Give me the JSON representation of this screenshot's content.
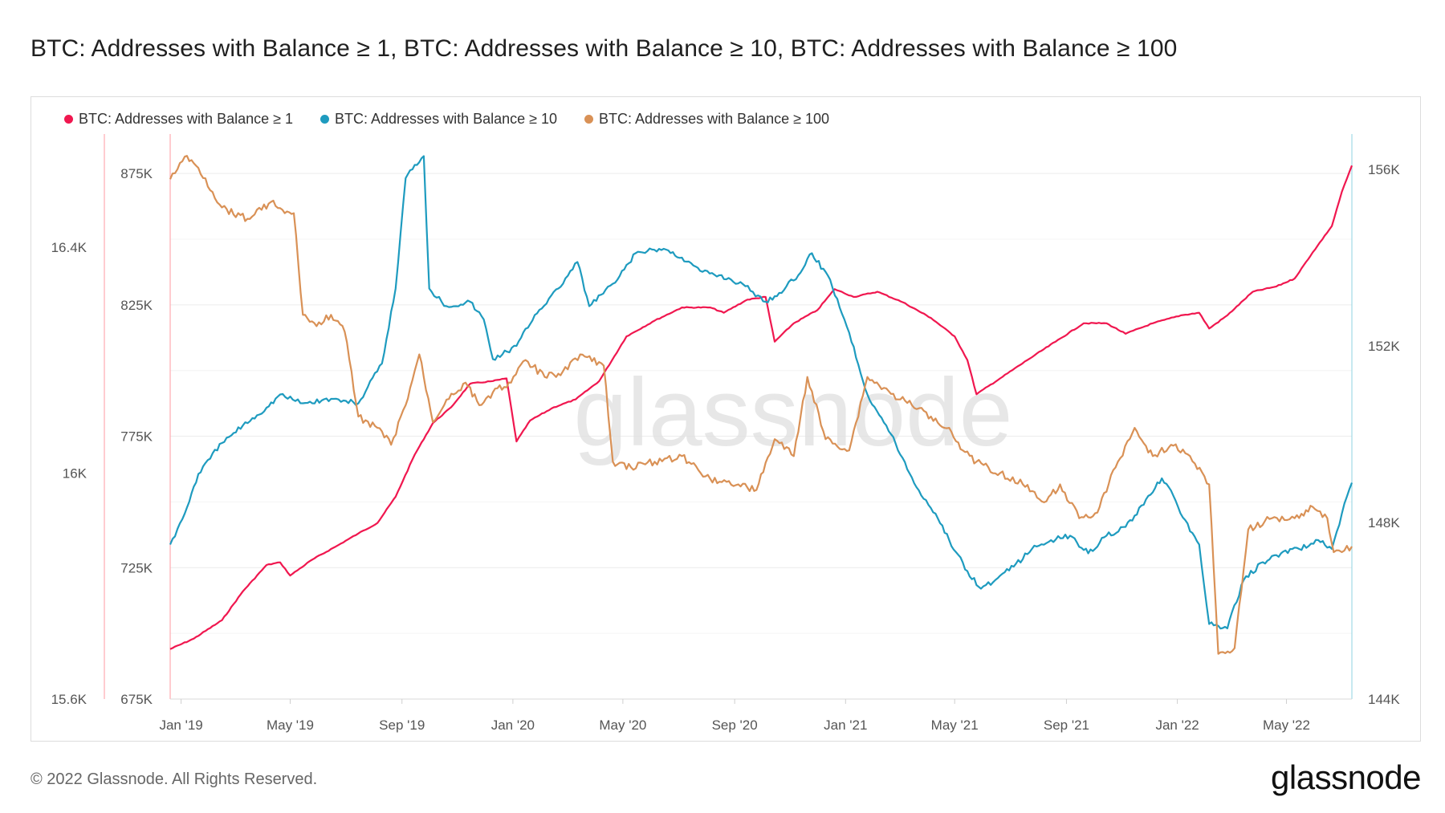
{
  "title": "BTC: Addresses with Balance ≥ 1, BTC: Addresses with Balance ≥ 10, BTC: Addresses with Balance ≥ 100",
  "footer": "© 2022 Glassnode. All Rights Reserved.",
  "brand": "glassnode",
  "watermark": "glassnode",
  "chart_data": {
    "type": "line",
    "x_ticks": [
      "Jan '19",
      "May '19",
      "Sep '19",
      "Jan '20",
      "May '20",
      "Sep '20",
      "Jan '21",
      "May '21",
      "Sep '21",
      "Jan '22",
      "May '22"
    ],
    "x_range": [
      "2018-12-20",
      "2022-07-12"
    ],
    "axes": {
      "left_outer": {
        "ticks": [
          "15.6K",
          "16K",
          "16.4K"
        ],
        "range": [
          15600,
          16600
        ],
        "color": "#ff9aa2"
      },
      "left_inner": {
        "ticks": [
          "675K",
          "725K",
          "775K",
          "825K",
          "875K"
        ],
        "range": [
          675000,
          890000
        ],
        "color": "#ff9aa2"
      },
      "right": {
        "ticks": [
          "144K",
          "148K",
          "152K",
          "156K"
        ],
        "range": [
          144000,
          156800
        ],
        "color": "#8fd3e0"
      }
    },
    "grid": true,
    "legend": "top-left",
    "series": [
      {
        "name": "BTC: Addresses with Balance ≥ 1",
        "color": "#f0174f",
        "axis": "left_inner",
        "points": [
          [
            "2018-12-20",
            694000
          ],
          [
            "2019-01-15",
            698000
          ],
          [
            "2019-02-15",
            705000
          ],
          [
            "2019-03-10",
            716000
          ],
          [
            "2019-04-05",
            726000
          ],
          [
            "2019-04-20",
            727000
          ],
          [
            "2019-05-01",
            722000
          ],
          [
            "2019-05-25",
            728000
          ],
          [
            "2019-06-20",
            733000
          ],
          [
            "2019-07-15",
            738000
          ],
          [
            "2019-08-05",
            742000
          ],
          [
            "2019-08-25",
            752000
          ],
          [
            "2019-09-15",
            768000
          ],
          [
            "2019-10-05",
            780000
          ],
          [
            "2019-10-25",
            786000
          ],
          [
            "2019-11-15",
            795000
          ],
          [
            "2019-12-10",
            796000
          ],
          [
            "2019-12-25",
            797000
          ],
          [
            "2020-01-05",
            773000
          ],
          [
            "2020-01-20",
            781000
          ],
          [
            "2020-02-15",
            786000
          ],
          [
            "2020-03-10",
            789000
          ],
          [
            "2020-04-05",
            796000
          ],
          [
            "2020-05-05",
            813000
          ],
          [
            "2020-06-05",
            819000
          ],
          [
            "2020-07-05",
            824000
          ],
          [
            "2020-08-05",
            824000
          ],
          [
            "2020-08-20",
            822000
          ],
          [
            "2020-09-15",
            827000
          ],
          [
            "2020-10-05",
            828000
          ],
          [
            "2020-10-15",
            811000
          ],
          [
            "2020-11-05",
            818000
          ],
          [
            "2020-12-01",
            823000
          ],
          [
            "2020-12-20",
            831000
          ],
          [
            "2021-01-10",
            828000
          ],
          [
            "2021-02-05",
            830000
          ],
          [
            "2021-03-05",
            826000
          ],
          [
            "2021-04-05",
            820000
          ],
          [
            "2021-05-01",
            813000
          ],
          [
            "2021-05-15",
            804000
          ],
          [
            "2021-05-25",
            791000
          ],
          [
            "2021-06-20",
            797000
          ],
          [
            "2021-07-20",
            804000
          ],
          [
            "2021-08-20",
            811000
          ],
          [
            "2021-09-20",
            818000
          ],
          [
            "2021-10-15",
            818000
          ],
          [
            "2021-11-05",
            814000
          ],
          [
            "2021-12-05",
            818000
          ],
          [
            "2022-01-05",
            821000
          ],
          [
            "2022-01-25",
            822000
          ],
          [
            "2022-02-05",
            816000
          ],
          [
            "2022-02-25",
            821000
          ],
          [
            "2022-03-25",
            830000
          ],
          [
            "2022-04-20",
            832000
          ],
          [
            "2022-05-10",
            835000
          ],
          [
            "2022-05-30",
            845000
          ],
          [
            "2022-06-20",
            855000
          ],
          [
            "2022-07-01",
            868000
          ],
          [
            "2022-07-12",
            878000
          ]
        ]
      },
      {
        "name": "BTC: Addresses with Balance ≥ 10",
        "color": "#1e9bbf",
        "axis": "right",
        "points": [
          [
            "2018-12-20",
            147500
          ],
          [
            "2019-01-05",
            148200
          ],
          [
            "2019-01-20",
            149100
          ],
          [
            "2019-02-15",
            149800
          ],
          [
            "2019-03-10",
            150200
          ],
          [
            "2019-04-05",
            150600
          ],
          [
            "2019-04-20",
            150900
          ],
          [
            "2019-05-15",
            150700
          ],
          [
            "2019-06-15",
            150800
          ],
          [
            "2019-07-15",
            150700
          ],
          [
            "2019-08-10",
            151600
          ],
          [
            "2019-08-25",
            153300
          ],
          [
            "2019-09-05",
            155800
          ],
          [
            "2019-09-15",
            156100
          ],
          [
            "2019-09-25",
            156300
          ],
          [
            "2019-10-01",
            153300
          ],
          [
            "2019-10-20",
            152900
          ],
          [
            "2019-11-15",
            153000
          ],
          [
            "2019-11-30",
            152600
          ],
          [
            "2019-12-10",
            151700
          ],
          [
            "2020-01-05",
            152000
          ],
          [
            "2020-01-25",
            152700
          ],
          [
            "2020-02-20",
            153300
          ],
          [
            "2020-03-12",
            153900
          ],
          [
            "2020-03-25",
            152900
          ],
          [
            "2020-04-25",
            153500
          ],
          [
            "2020-05-15",
            154100
          ],
          [
            "2020-06-15",
            154200
          ],
          [
            "2020-07-05",
            154000
          ],
          [
            "2020-07-25",
            153700
          ],
          [
            "2020-08-15",
            153600
          ],
          [
            "2020-09-10",
            153400
          ],
          [
            "2020-10-05",
            153000
          ],
          [
            "2020-10-20",
            153200
          ],
          [
            "2020-11-10",
            153600
          ],
          [
            "2020-11-25",
            154100
          ],
          [
            "2020-12-15",
            153500
          ],
          [
            "2021-01-05",
            152300
          ],
          [
            "2021-01-25",
            150900
          ],
          [
            "2021-02-20",
            150000
          ],
          [
            "2021-03-20",
            148800
          ],
          [
            "2021-04-10",
            148200
          ],
          [
            "2021-04-25",
            147600
          ],
          [
            "2021-05-15",
            146900
          ],
          [
            "2021-05-30",
            146500
          ],
          [
            "2021-06-15",
            146700
          ],
          [
            "2021-07-05",
            147000
          ],
          [
            "2021-07-25",
            147400
          ],
          [
            "2021-08-15",
            147600
          ],
          [
            "2021-09-05",
            147700
          ],
          [
            "2021-09-25",
            147300
          ],
          [
            "2021-10-15",
            147700
          ],
          [
            "2021-11-05",
            147900
          ],
          [
            "2021-11-25",
            148400
          ],
          [
            "2021-12-15",
            149000
          ],
          [
            "2021-12-30",
            148500
          ],
          [
            "2022-01-15",
            147800
          ],
          [
            "2022-01-25",
            147500
          ],
          [
            "2022-02-05",
            145700
          ],
          [
            "2022-02-25",
            145600
          ],
          [
            "2022-03-15",
            146700
          ],
          [
            "2022-04-05",
            147100
          ],
          [
            "2022-04-25",
            147300
          ],
          [
            "2022-05-15",
            147400
          ],
          [
            "2022-06-05",
            147600
          ],
          [
            "2022-06-20",
            147400
          ],
          [
            "2022-07-01",
            148200
          ],
          [
            "2022-07-12",
            148900
          ]
        ]
      },
      {
        "name": "BTC: Addresses with Balance ≥ 100",
        "color": "#d99156",
        "axis": "left_outer",
        "points": [
          [
            "2018-12-20",
            16520
          ],
          [
            "2019-01-05",
            16560
          ],
          [
            "2019-01-20",
            16540
          ],
          [
            "2019-02-15",
            16470
          ],
          [
            "2019-03-15",
            16450
          ],
          [
            "2019-04-10",
            16480
          ],
          [
            "2019-04-25",
            16460
          ],
          [
            "2019-05-05",
            16460
          ],
          [
            "2019-05-15",
            16280
          ],
          [
            "2019-05-30",
            16260
          ],
          [
            "2019-06-15",
            16280
          ],
          [
            "2019-06-30",
            16250
          ],
          [
            "2019-07-15",
            16100
          ],
          [
            "2019-08-05",
            16080
          ],
          [
            "2019-08-20",
            16050
          ],
          [
            "2019-09-05",
            16120
          ],
          [
            "2019-09-20",
            16210
          ],
          [
            "2019-10-05",
            16090
          ],
          [
            "2019-10-20",
            16130
          ],
          [
            "2019-11-10",
            16160
          ],
          [
            "2019-11-25",
            16120
          ],
          [
            "2019-12-15",
            16150
          ],
          [
            "2019-12-30",
            16160
          ],
          [
            "2020-01-15",
            16200
          ],
          [
            "2020-02-05",
            16170
          ],
          [
            "2020-02-25",
            16180
          ],
          [
            "2020-03-15",
            16210
          ],
          [
            "2020-04-10",
            16190
          ],
          [
            "2020-04-20",
            16020
          ],
          [
            "2020-05-10",
            16010
          ],
          [
            "2020-06-05",
            16020
          ],
          [
            "2020-07-05",
            16030
          ],
          [
            "2020-08-05",
            15990
          ],
          [
            "2020-09-05",
            15980
          ],
          [
            "2020-09-25",
            15970
          ],
          [
            "2020-10-15",
            16060
          ],
          [
            "2020-11-05",
            16030
          ],
          [
            "2020-11-20",
            16170
          ],
          [
            "2020-12-10",
            16060
          ],
          [
            "2021-01-05",
            16040
          ],
          [
            "2021-01-25",
            16170
          ],
          [
            "2021-02-20",
            16140
          ],
          [
            "2021-03-15",
            16120
          ],
          [
            "2021-04-05",
            16100
          ],
          [
            "2021-04-25",
            16080
          ],
          [
            "2021-05-10",
            16040
          ],
          [
            "2021-05-25",
            16020
          ],
          [
            "2021-06-20",
            16000
          ],
          [
            "2021-07-15",
            15980
          ],
          [
            "2021-08-10",
            15950
          ],
          [
            "2021-08-25",
            15980
          ],
          [
            "2021-09-15",
            15920
          ],
          [
            "2021-10-05",
            15930
          ],
          [
            "2021-10-25",
            16010
          ],
          [
            "2021-11-15",
            16080
          ],
          [
            "2021-12-05",
            16030
          ],
          [
            "2021-12-25",
            16050
          ],
          [
            "2022-01-15",
            16030
          ],
          [
            "2022-02-05",
            15980
          ],
          [
            "2022-02-15",
            15680
          ],
          [
            "2022-03-05",
            15690
          ],
          [
            "2022-03-20",
            15900
          ],
          [
            "2022-04-15",
            15920
          ],
          [
            "2022-05-10",
            15920
          ],
          [
            "2022-05-30",
            15940
          ],
          [
            "2022-06-15",
            15920
          ],
          [
            "2022-06-22",
            15860
          ],
          [
            "2022-07-01",
            15860
          ],
          [
            "2022-07-12",
            15870
          ]
        ]
      }
    ]
  }
}
